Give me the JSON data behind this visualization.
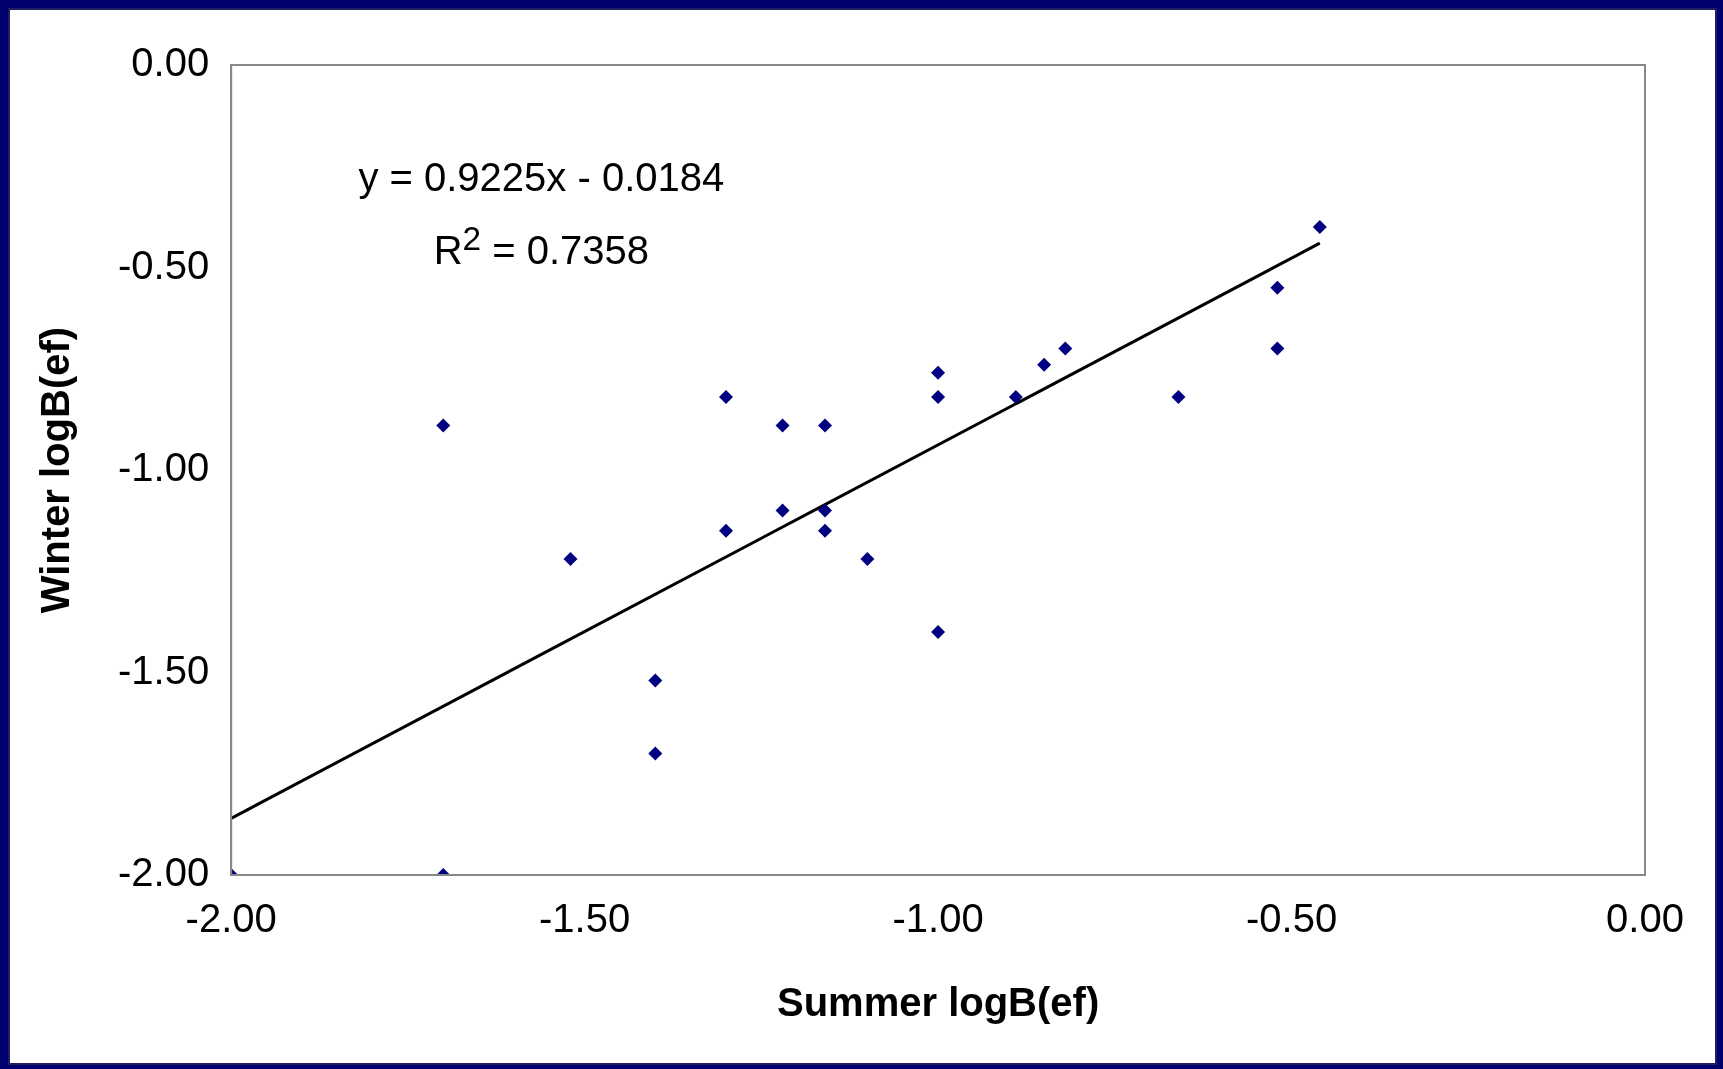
{
  "chart_data": {
    "type": "scatter",
    "xlabel": "Summer logB(ef)",
    "ylabel": "Winter logB(ef)",
    "annotations": [
      "y = 0.9225x - 0.0184",
      "R$^{2}$ = 0.7358"
    ],
    "xlim": [
      -2,
      0
    ],
    "xticks": [
      {
        "value": -2,
        "label": "-2.00"
      },
      {
        "value": -1.5,
        "label": "-1.50"
      },
      {
        "value": -1,
        "label": "-1.00"
      },
      {
        "value": -0.5,
        "label": "-0.50"
      },
      {
        "value": 0,
        "label": "0.00"
      }
    ],
    "ylim": [
      -2,
      0
    ],
    "yticks": [
      {
        "value": -2,
        "label": "-2.00"
      },
      {
        "value": -1.5,
        "label": "-1.50"
      },
      {
        "value": -1,
        "label": "-1.00"
      },
      {
        "value": -0.5,
        "label": "-0.50"
      },
      {
        "value": 0,
        "label": "0.00"
      }
    ],
    "grid": false,
    "legend": false,
    "marker": "diamond",
    "series": [
      {
        "type": "scatter",
        "color": "#000080",
        "x": [
          -2.0,
          -1.7,
          -1.7,
          -1.52,
          -1.4,
          -1.4,
          -1.3,
          -1.3,
          -1.22,
          -1.22,
          -1.16,
          -1.16,
          -1.16,
          -1.1,
          -1.0,
          -1.0,
          -1.0,
          -0.89,
          -0.85,
          -0.82,
          -0.66,
          -0.52,
          -0.52,
          -0.46
        ],
        "values": [
          -2.0,
          -0.89,
          -2.0,
          -1.22,
          -1.52,
          -1.7,
          -0.82,
          -1.15,
          -0.89,
          -1.1,
          -0.89,
          -1.1,
          -1.15,
          -1.22,
          -0.76,
          -0.82,
          -1.4,
          -0.82,
          -0.74,
          -0.7,
          -0.82,
          -0.55,
          -0.7,
          -0.4
        ]
      },
      {
        "type": "line",
        "color": "#000000",
        "marker": "none",
        "x": [
          -2.0,
          -0.46
        ],
        "values": [
          -1.86,
          -0.44
        ]
      }
    ]
  }
}
